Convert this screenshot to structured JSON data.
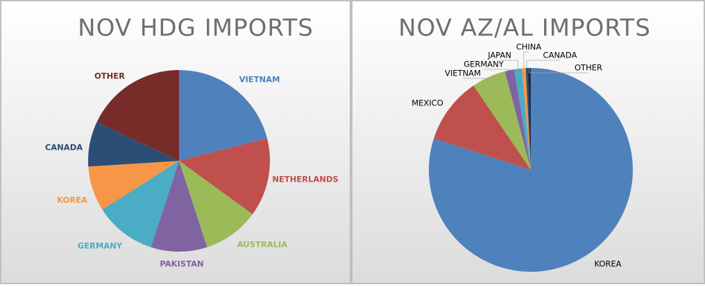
{
  "chart_data": [
    {
      "type": "pie",
      "title": "NOV HDG IMPORTS",
      "categories": [
        "VIETNAM",
        "NETHERLANDS",
        "AUSTRALIA",
        "PAKISTAN",
        "GERMANY",
        "KOREA",
        "CANADA",
        "OTHER"
      ],
      "values": [
        21,
        14,
        10,
        10,
        11,
        8,
        8,
        18
      ],
      "colors": [
        "#4f81bd",
        "#c0504d",
        "#9bbb59",
        "#8064a2",
        "#4bacc6",
        "#f79646",
        "#2c4d75",
        "#772c2a"
      ]
    },
    {
      "type": "pie",
      "title": "NOV AZ/AL IMPORTS",
      "categories": [
        "KOREA",
        "MEXICO",
        "VIETNAM",
        "GERMANY",
        "JAPAN",
        "CHINA",
        "CANADA",
        "OTHER"
      ],
      "values": [
        80,
        10.5,
        5.4,
        1.5,
        1.2,
        0.6,
        0.3,
        0.5
      ],
      "colors": [
        "#4f81bd",
        "#c0504d",
        "#9bbb59",
        "#8064a2",
        "#4bacc6",
        "#f79646",
        "#2c4d75",
        "#1f2f4a"
      ]
    }
  ]
}
